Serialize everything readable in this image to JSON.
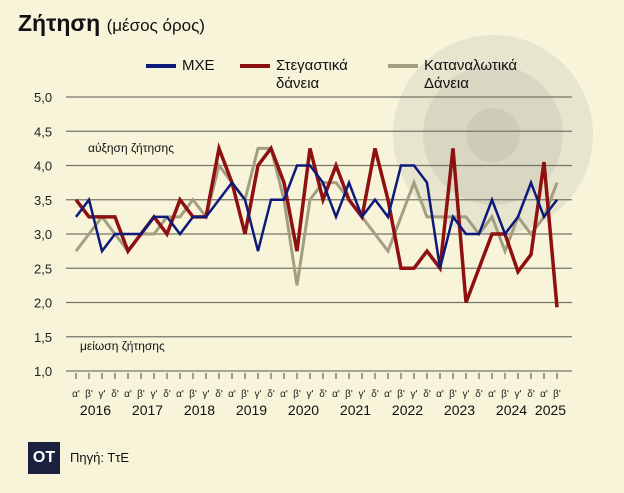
{
  "header": {
    "title": "Ζήτηση",
    "subtitle": "(μέσος όρος)"
  },
  "footer": {
    "logo": "OT",
    "source": "Πηγή: ΤτΕ"
  },
  "chart_data": {
    "type": "line",
    "title": "Ζήτηση (μέσος όρος)",
    "ylim": [
      1.0,
      5.0
    ],
    "yticks": [
      "1,0",
      "1,5",
      "2,0",
      "2,5",
      "3,0",
      "3,5",
      "4,0",
      "4,5",
      "5,0"
    ],
    "annotations": [
      "αύξηση ζήτησης",
      "μείωση ζήτησης"
    ],
    "legend_position": "top",
    "grid": true,
    "quarter_labels": [
      "α'",
      "β'",
      "γ'",
      "δ'"
    ],
    "years": [
      "2016",
      "2017",
      "2018",
      "2019",
      "2020",
      "2021",
      "2022",
      "2023",
      "2024",
      "2025"
    ],
    "x_count": 38,
    "series": [
      {
        "name": "ΜΧΕ",
        "color": "#0d1a7a",
        "values": [
          3.25,
          3.5,
          2.75,
          3.0,
          3.0,
          3.0,
          3.25,
          3.25,
          3.0,
          3.25,
          3.25,
          3.5,
          3.75,
          3.5,
          2.75,
          3.5,
          3.5,
          4.0,
          4.0,
          3.75,
          3.25,
          3.75,
          3.25,
          3.5,
          3.25,
          4.0,
          4.0,
          3.75,
          2.5,
          3.25,
          3.0,
          3.0,
          3.5,
          3.0,
          3.25,
          3.75,
          3.25,
          3.5
        ]
      },
      {
        "name": "Στεγαστικά δάνεια",
        "color": "#8f1010",
        "values": [
          3.5,
          3.25,
          3.25,
          3.25,
          2.75,
          3.0,
          3.25,
          3.0,
          3.5,
          3.25,
          3.25,
          4.25,
          3.75,
          3.0,
          4.0,
          4.25,
          3.75,
          2.75,
          4.25,
          3.5,
          4.0,
          3.5,
          3.25,
          4.25,
          3.5,
          2.5,
          2.5,
          2.75,
          2.5,
          4.25,
          2.0,
          2.5,
          3.0,
          3.0,
          2.45,
          2.7,
          4.05,
          1.93
        ]
      },
      {
        "name": "Καταναλωτικά Δάνεια",
        "color": "#a39e80",
        "values": [
          2.75,
          3.0,
          3.25,
          3.0,
          2.75,
          3.0,
          3.0,
          3.25,
          3.25,
          3.5,
          3.25,
          4.0,
          3.75,
          3.5,
          4.25,
          4.25,
          3.5,
          2.25,
          3.5,
          3.75,
          3.75,
          3.5,
          3.25,
          3.0,
          2.75,
          3.25,
          3.75,
          3.25,
          3.25,
          3.25,
          3.25,
          3.0,
          3.25,
          2.75,
          3.25,
          3.0,
          3.25,
          3.75
        ]
      }
    ]
  }
}
